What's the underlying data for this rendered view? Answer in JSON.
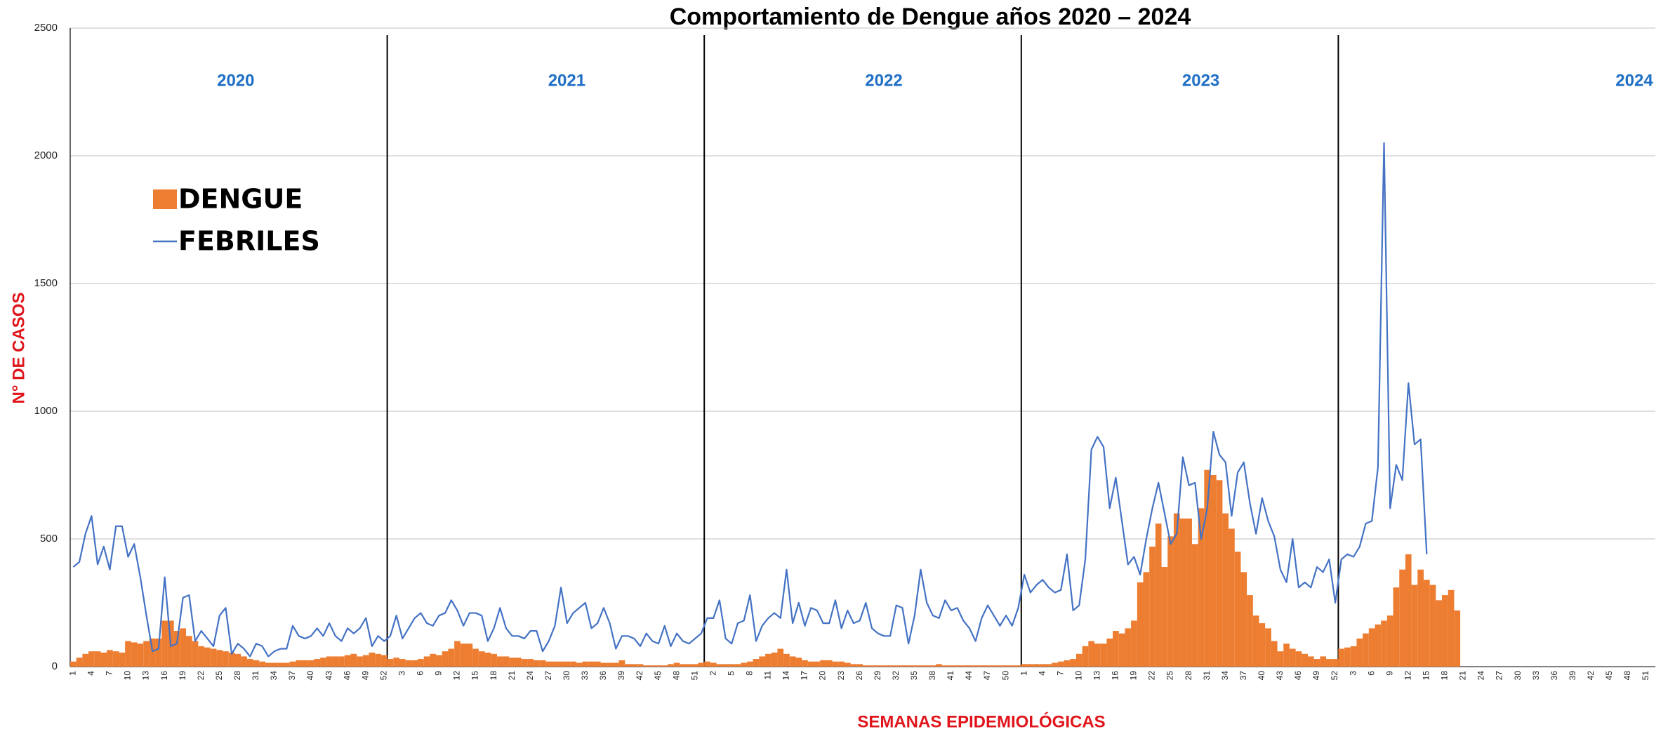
{
  "chart_data": {
    "type": "bar",
    "title": "Comportamiento de Dengue años 2020 – 2024",
    "xlabel": "SEMANAS EPIDEMIOLÓGICAS",
    "ylabel": "N° DE CASOS",
    "annotations": [
      "2020",
      "2021",
      "2022",
      "2023",
      "2024"
    ],
    "ylim": [
      0,
      2500
    ],
    "yticks": [
      0,
      500,
      1000,
      1500,
      2000,
      2500
    ],
    "grid": true,
    "legend": "upper left",
    "categories": [
      "1",
      null,
      null,
      "4",
      null,
      null,
      "7",
      null,
      null,
      "10",
      null,
      null,
      "13",
      null,
      null,
      "16",
      null,
      null,
      "19",
      null,
      null,
      "22",
      null,
      null,
      "25",
      null,
      null,
      "28",
      null,
      null,
      "31",
      null,
      null,
      "34",
      null,
      null,
      "37",
      null,
      null,
      "40",
      null,
      null,
      "43",
      null,
      null,
      "46",
      null,
      null,
      "49",
      null,
      null,
      "52",
      null,
      null,
      "3",
      null,
      null,
      "6",
      null,
      null,
      "9",
      null,
      null,
      "12",
      null,
      null,
      "15",
      null,
      null,
      "18",
      null,
      null,
      "21",
      null,
      null,
      "24",
      null,
      null,
      "27",
      null,
      null,
      "30",
      null,
      null,
      "33",
      null,
      null,
      "36",
      null,
      null,
      "39",
      null,
      null,
      "42",
      null,
      null,
      "45",
      null,
      null,
      "48",
      null,
      null,
      "51",
      null,
      null,
      "2",
      null,
      null,
      "5",
      null,
      null,
      "8",
      null,
      null,
      "11",
      null,
      null,
      "14",
      null,
      null,
      "17",
      null,
      null,
      "20",
      null,
      null,
      "23",
      null,
      null,
      "26",
      null,
      null,
      "29",
      null,
      null,
      "32",
      null,
      null,
      "35",
      null,
      null,
      "38",
      null,
      null,
      "41",
      null,
      null,
      "44",
      null,
      null,
      "47",
      null,
      null,
      "50",
      null,
      null,
      "1",
      null,
      null,
      "4",
      null,
      null,
      "7",
      null,
      null,
      "10",
      null,
      null,
      "13",
      null,
      null,
      "16",
      null,
      null,
      "19",
      null,
      null,
      "22",
      null,
      null,
      "25",
      null,
      null,
      "28",
      null,
      null,
      "31",
      null,
      null,
      "34",
      null,
      null,
      "37",
      null,
      null,
      "40",
      null,
      null,
      "43",
      null,
      null,
      "46",
      null,
      null,
      "49",
      null,
      null,
      "52",
      null,
      null,
      "3",
      null,
      null,
      "6",
      null,
      null,
      "9",
      null,
      null,
      "12",
      null,
      null,
      "15",
      null,
      null,
      "18",
      null,
      null,
      "21",
      null,
      null,
      "24",
      null,
      null,
      "27",
      null,
      null,
      "30",
      null,
      null,
      "33",
      null,
      null,
      "36",
      null,
      null,
      "39",
      null,
      null,
      "42",
      null,
      null,
      "45",
      null,
      null,
      "48",
      null,
      null,
      "51",
      null
    ],
    "series": [
      {
        "name": "DENGUE",
        "type": "bar",
        "color": "#ed7d31",
        "values": [
          20,
          35,
          50,
          60,
          60,
          55,
          65,
          60,
          55,
          100,
          95,
          90,
          100,
          110,
          110,
          180,
          180,
          140,
          150,
          120,
          100,
          80,
          75,
          70,
          65,
          60,
          55,
          50,
          40,
          30,
          25,
          20,
          15,
          15,
          15,
          15,
          20,
          25,
          25,
          25,
          30,
          35,
          40,
          40,
          40,
          45,
          50,
          40,
          45,
          55,
          50,
          45,
          30,
          35,
          30,
          25,
          25,
          30,
          40,
          50,
          45,
          60,
          70,
          100,
          90,
          90,
          70,
          60,
          55,
          50,
          40,
          40,
          35,
          35,
          30,
          30,
          25,
          25,
          20,
          20,
          20,
          20,
          20,
          15,
          20,
          20,
          20,
          15,
          15,
          15,
          25,
          10,
          10,
          10,
          5,
          5,
          5,
          5,
          10,
          15,
          10,
          10,
          10,
          15,
          20,
          15,
          10,
          10,
          10,
          10,
          15,
          20,
          30,
          40,
          50,
          55,
          70,
          50,
          40,
          35,
          25,
          20,
          20,
          25,
          25,
          20,
          20,
          15,
          10,
          10,
          5,
          5,
          5,
          5,
          5,
          5,
          5,
          5,
          5,
          5,
          5,
          5,
          10,
          5,
          5,
          5,
          5,
          5,
          5,
          5,
          5,
          5,
          5,
          5,
          5,
          5,
          10,
          10,
          10,
          10,
          10,
          15,
          20,
          25,
          30,
          50,
          80,
          100,
          90,
          90,
          110,
          140,
          130,
          150,
          180,
          330,
          370,
          470,
          560,
          390,
          510,
          600,
          580,
          580,
          480,
          620,
          770,
          750,
          730,
          600,
          540,
          450,
          370,
          280,
          200,
          170,
          150,
          100,
          60,
          90,
          70,
          60,
          50,
          40,
          30,
          40,
          30,
          30,
          70,
          75,
          80,
          110,
          130,
          150,
          165,
          180,
          200,
          310,
          380,
          440,
          320,
          380,
          340,
          320,
          260,
          280,
          300,
          220,
          null,
          null,
          null,
          null,
          null,
          null,
          null,
          null,
          null,
          null,
          null,
          null,
          null,
          null,
          null,
          null,
          null,
          null,
          null,
          null,
          null,
          null,
          null,
          null,
          null,
          null,
          null,
          null,
          null,
          null,
          null,
          null
        ]
      },
      {
        "name": "FEBRILES",
        "type": "line",
        "color": "#4472c4",
        "values": [
          390,
          410,
          520,
          590,
          400,
          470,
          380,
          550,
          550,
          430,
          480,
          350,
          200,
          60,
          70,
          350,
          80,
          90,
          270,
          280,
          100,
          140,
          110,
          80,
          200,
          230,
          50,
          90,
          70,
          40,
          90,
          80,
          40,
          60,
          70,
          70,
          160,
          120,
          110,
          120,
          150,
          120,
          170,
          120,
          100,
          150,
          130,
          150,
          190,
          80,
          120,
          100,
          120,
          200,
          110,
          150,
          190,
          210,
          170,
          160,
          200,
          210,
          260,
          220,
          160,
          210,
          210,
          200,
          100,
          150,
          230,
          150,
          120,
          120,
          110,
          140,
          140,
          60,
          100,
          160,
          310,
          170,
          210,
          230,
          250,
          150,
          170,
          230,
          170,
          70,
          120,
          120,
          110,
          80,
          130,
          100,
          90,
          160,
          80,
          130,
          100,
          90,
          110,
          130,
          190,
          190,
          260,
          110,
          90,
          170,
          180,
          280,
          100,
          160,
          190,
          210,
          190,
          380,
          170,
          250,
          160,
          230,
          220,
          170,
          170,
          260,
          150,
          220,
          170,
          180,
          250,
          150,
          130,
          120,
          120,
          240,
          230,
          90,
          200,
          380,
          250,
          200,
          190,
          260,
          220,
          230,
          180,
          150,
          100,
          190,
          240,
          200,
          160,
          200,
          160,
          230,
          360,
          290,
          320,
          340,
          310,
          290,
          300,
          440,
          220,
          240,
          420,
          850,
          900,
          860,
          620,
          740,
          570,
          400,
          430,
          360,
          500,
          620,
          720,
          600,
          480,
          520,
          820,
          710,
          720,
          500,
          620,
          920,
          830,
          800,
          590,
          760,
          800,
          640,
          520,
          660,
          570,
          510,
          380,
          330,
          500,
          310,
          330,
          310,
          390,
          370,
          420,
          250,
          420,
          440,
          430,
          470,
          560,
          570,
          780,
          2050,
          620,
          790,
          730,
          1110,
          870,
          890,
          440,
          null,
          null,
          null,
          null,
          null,
          null,
          null,
          null,
          null,
          null,
          null,
          null,
          null,
          null,
          null,
          null,
          null,
          null,
          null,
          null,
          null,
          null,
          null,
          null,
          null,
          null,
          null,
          null,
          null,
          null,
          null,
          null,
          null,
          null,
          null,
          null,
          null
        ]
      }
    ]
  }
}
